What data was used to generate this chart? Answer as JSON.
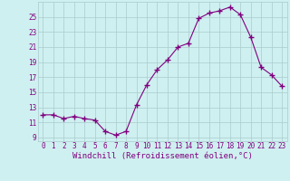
{
  "x": [
    0,
    1,
    2,
    3,
    4,
    5,
    6,
    7,
    8,
    9,
    10,
    11,
    12,
    13,
    14,
    15,
    16,
    17,
    18,
    19,
    20,
    21,
    22,
    23
  ],
  "y": [
    12.0,
    12.0,
    11.5,
    11.8,
    11.5,
    11.3,
    9.8,
    9.3,
    9.8,
    13.3,
    16.0,
    18.0,
    19.3,
    21.0,
    21.5,
    24.8,
    25.5,
    25.8,
    26.3,
    25.3,
    22.3,
    18.3,
    17.3,
    15.8
  ],
  "line_color": "#800080",
  "marker": "+",
  "marker_size": 4,
  "marker_lw": 1.0,
  "bg_color": "#cff0f0",
  "grid_color": "#aacccc",
  "xlabel": "Windchill (Refroidissement éolien,°C)",
  "ylabel": "",
  "ylim": [
    8.5,
    27
  ],
  "xlim": [
    -0.5,
    23.5
  ],
  "yticks": [
    9,
    11,
    13,
    15,
    17,
    19,
    21,
    23,
    25
  ],
  "xtick_labels": [
    "0",
    "1",
    "2",
    "3",
    "4",
    "5",
    "6",
    "7",
    "8",
    "9",
    "10",
    "11",
    "12",
    "13",
    "14",
    "15",
    "16",
    "17",
    "18",
    "19",
    "20",
    "21",
    "22",
    "23"
  ],
  "font_color": "#800080",
  "font_name": "monospace",
  "label_fontsize": 6.5,
  "tick_fontsize": 5.5,
  "linewidth": 0.8
}
